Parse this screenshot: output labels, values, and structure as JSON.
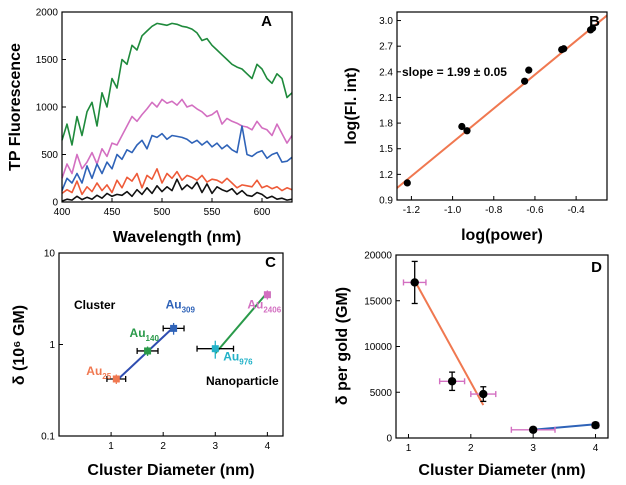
{
  "chart_data": [
    {
      "panel": "A",
      "type": "line",
      "xlabel": "Wavelength (nm)",
      "ylabel": "TP Fluorescence",
      "xlim": [
        400,
        630
      ],
      "ylim": [
        0,
        2000
      ],
      "xticks": [
        400,
        450,
        500,
        550,
        600
      ],
      "yticks": [
        0,
        500,
        1000,
        1500,
        2000
      ],
      "x": [
        400,
        405,
        410,
        415,
        420,
        425,
        430,
        435,
        440,
        445,
        450,
        455,
        460,
        465,
        470,
        475,
        480,
        485,
        490,
        495,
        500,
        505,
        510,
        515,
        520,
        525,
        530,
        535,
        540,
        545,
        550,
        555,
        560,
        565,
        570,
        575,
        580,
        585,
        590,
        595,
        600,
        605,
        610,
        615,
        620,
        625,
        630
      ],
      "series": [
        {
          "color": "#1f8a3c",
          "values": [
            650,
            820,
            600,
            900,
            700,
            950,
            1050,
            800,
            1150,
            1000,
            1300,
            1200,
            1500,
            1450,
            1650,
            1600,
            1750,
            1800,
            1850,
            1880,
            1870,
            1860,
            1880,
            1870,
            1850,
            1840,
            1820,
            1780,
            1700,
            1720,
            1650,
            1600,
            1550,
            1500,
            1450,
            1420,
            1400,
            1350,
            1300,
            1450,
            1400,
            1300,
            1250,
            1350,
            1300,
            1100,
            1150
          ]
        },
        {
          "color": "#d36fc1",
          "values": [
            250,
            400,
            300,
            500,
            350,
            420,
            520,
            400,
            560,
            480,
            620,
            600,
            700,
            800,
            900,
            850,
            920,
            980,
            1050,
            1000,
            1080,
            1040,
            1060,
            1020,
            1080,
            1000,
            1020,
            980,
            950,
            900,
            920,
            960,
            820,
            880,
            850,
            830,
            800,
            790,
            760,
            850,
            780,
            760,
            700,
            820,
            720,
            620,
            700
          ]
        },
        {
          "color": "#2f63b8",
          "values": [
            120,
            250,
            200,
            300,
            200,
            380,
            250,
            400,
            300,
            420,
            350,
            500,
            450,
            550,
            520,
            600,
            650,
            560,
            700,
            680,
            720,
            660,
            700,
            690,
            680,
            660,
            620,
            650,
            600,
            640,
            580,
            620,
            560,
            600,
            550,
            520,
            800,
            500,
            480,
            520,
            540,
            460,
            500,
            520,
            420,
            430,
            470
          ]
        },
        {
          "color": "#ee5a38",
          "values": [
            90,
            130,
            100,
            220,
            80,
            160,
            110,
            200,
            120,
            180,
            100,
            230,
            150,
            260,
            220,
            300,
            150,
            280,
            240,
            350,
            200,
            300,
            250,
            320,
            230,
            280,
            260,
            230,
            280,
            210,
            240,
            230,
            200,
            250,
            200,
            150,
            180,
            170,
            160,
            230,
            150,
            170,
            140,
            160,
            120,
            150,
            130
          ]
        },
        {
          "color": "#111111",
          "values": [
            10,
            30,
            20,
            60,
            25,
            50,
            30,
            70,
            40,
            90,
            60,
            80,
            70,
            110,
            60,
            130,
            80,
            150,
            90,
            170,
            110,
            160,
            120,
            240,
            130,
            180,
            140,
            210,
            100,
            190,
            90,
            160,
            130,
            110,
            140,
            80,
            120,
            70,
            60,
            100,
            80,
            40,
            60,
            30,
            40,
            20,
            30
          ]
        }
      ]
    },
    {
      "panel": "B",
      "type": "scatter",
      "xlabel": "log(power)",
      "ylabel": "log(Fl. int)",
      "xlim": [
        -1.27,
        -0.25
      ],
      "ylim": [
        0.9,
        3.1
      ],
      "xticks": [
        -1.2,
        -1.0,
        -0.8,
        -0.6,
        -0.4
      ],
      "xtick_labels": [
        "-1.2",
        "-1.0",
        "-0.8",
        "-0.6",
        "-0.4"
      ],
      "yticks": [
        0.9,
        1.2,
        1.5,
        1.8,
        2.1,
        2.4,
        2.7,
        3.0
      ],
      "ytick_labels": [
        "0.9",
        "1.2",
        "1.5",
        "1.8",
        "2.1",
        "2.4",
        "2.7",
        "3.0"
      ],
      "annotation": "slope = 1.99 ± 0.05",
      "points": {
        "x": [
          -1.22,
          -0.955,
          -0.93,
          -0.65,
          -0.63,
          -0.47,
          -0.46,
          -0.33,
          -0.32
        ],
        "y": [
          1.1,
          1.76,
          1.71,
          2.29,
          2.42,
          2.66,
          2.67,
          2.89,
          2.91
        ]
      },
      "fit": {
        "x": [
          -1.27,
          -0.25
        ],
        "y": [
          1.04,
          3.06
        ],
        "color": "#f07850"
      }
    },
    {
      "panel": "C",
      "type": "scatter",
      "xlabel": "Cluster Diameter (nm)",
      "ylabel": "δ (10⁶ GM)",
      "xlim": [
        0,
        4.3
      ],
      "ylim": [
        0.1,
        10
      ],
      "yscale": "log",
      "xticks": [
        1,
        2,
        3,
        4
      ],
      "yticks": [
        0.1,
        1,
        10
      ],
      "ytick_labels": [
        "0.1",
        "1",
        "10"
      ],
      "text_labels": [
        "Cluster",
        "Nanoparticle"
      ],
      "points": [
        {
          "label": "Au",
          "sub": "25",
          "x": 1.1,
          "y": 0.42,
          "xerr": 0.18,
          "yerr": 0.05,
          "color": "#f07850"
        },
        {
          "label": "Au",
          "sub": "140",
          "x": 1.7,
          "y": 0.85,
          "xerr": 0.2,
          "yerr": 0.1,
          "color": "#2a9a4a"
        },
        {
          "label": "Au",
          "sub": "309",
          "x": 2.2,
          "y": 1.5,
          "xerr": 0.2,
          "yerr": 0.22,
          "color": "#2f63b8"
        },
        {
          "label": "Au",
          "sub": "976",
          "x": 3.0,
          "y": 0.9,
          "xerr": 0.35,
          "yerr": 0.2,
          "color": "#22b2c8"
        },
        {
          "label": "Au",
          "sub": "2406",
          "x": 4.0,
          "y": 3.5,
          "xerr": 0.05,
          "yerr": 0.4,
          "color": "#d36fc1"
        }
      ],
      "fits": [
        {
          "x": [
            1.1,
            2.2
          ],
          "y": [
            0.4,
            1.55
          ],
          "color": "#2f4db0"
        },
        {
          "x": [
            3.0,
            4.0
          ],
          "y": [
            0.8,
            3.7
          ],
          "color": "#2a9a4a"
        }
      ]
    },
    {
      "panel": "D",
      "type": "scatter",
      "xlabel": "Cluster Diameter (nm)",
      "ylabel": "δ per gold (GM)",
      "xlim": [
        0.8,
        4.2
      ],
      "ylim": [
        0,
        20000
      ],
      "xticks": [
        1,
        2,
        3,
        4
      ],
      "yticks": [
        0,
        5000,
        10000,
        15000,
        20000
      ],
      "points": [
        {
          "x": 1.1,
          "y": 17000,
          "xerr": 0.18,
          "yerr": 2300
        },
        {
          "x": 1.7,
          "y": 6200,
          "xerr": 0.2,
          "yerr": 1000
        },
        {
          "x": 2.2,
          "y": 4800,
          "xerr": 0.2,
          "yerr": 800
        },
        {
          "x": 3.0,
          "y": 900,
          "xerr": 0.35,
          "yerr": 200
        },
        {
          "x": 4.0,
          "y": 1400,
          "xerr": 0.05,
          "yerr": 300
        }
      ],
      "fits": [
        {
          "x": [
            1.1,
            2.2
          ],
          "y": [
            17200,
            3600
          ],
          "color": "#f07850"
        },
        {
          "x": [
            3.0,
            4.0
          ],
          "y": [
            900,
            1500
          ],
          "color": "#2f63b8"
        }
      ]
    }
  ],
  "panel_labels": [
    "A",
    "B",
    "C",
    "D"
  ],
  "error_bar_color": "#d36fc1"
}
